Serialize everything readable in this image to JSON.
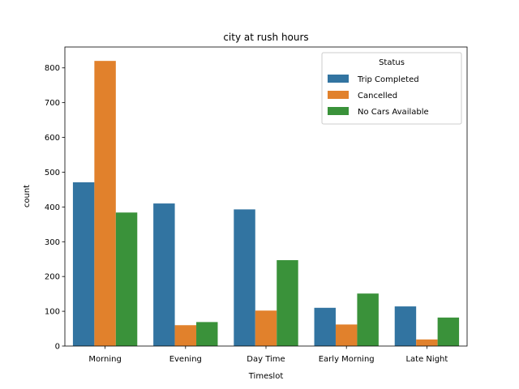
{
  "chart_data": {
    "type": "bar",
    "title": "city at rush hours",
    "xlabel": "Timeslot",
    "ylabel": "count",
    "categories": [
      "Morning",
      "Evening",
      "Day Time",
      "Early Morning",
      "Late Night"
    ],
    "series": [
      {
        "name": "Trip Completed",
        "color": "#3274a1",
        "values": [
          471,
          410,
          393,
          110,
          114
        ]
      },
      {
        "name": "Cancelled",
        "color": "#e1812c",
        "values": [
          820,
          60,
          102,
          62,
          19
        ]
      },
      {
        "name": "No Cars Available",
        "color": "#3a923a",
        "values": [
          384,
          69,
          247,
          151,
          82
        ]
      }
    ],
    "ylim": [
      0,
      860
    ],
    "yticks": [
      0,
      100,
      200,
      300,
      400,
      500,
      600,
      700,
      800
    ],
    "legend": {
      "title": "Status",
      "placement": "top-right"
    },
    "grid": false
  }
}
